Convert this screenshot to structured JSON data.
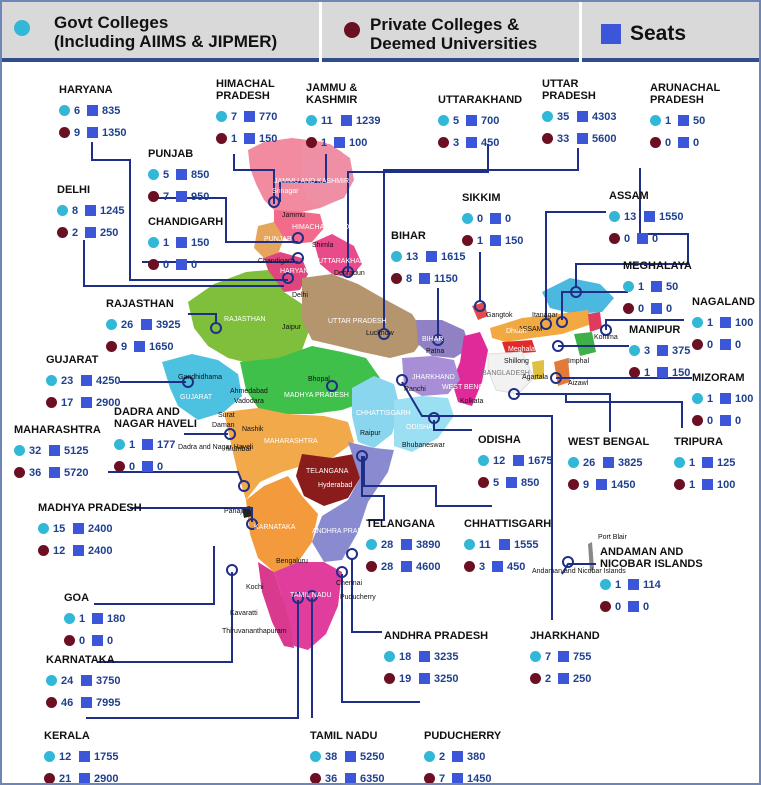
{
  "legend": {
    "govt": "Govt Colleges\n(Including AIIMS & JIPMER)",
    "govt_line1": "Govt Colleges",
    "govt_line2": "(Including AIIMS & JIPMER)",
    "private_line1": "Private Colleges &",
    "private_line2": "Deemed Universities",
    "seats": "Seats"
  },
  "colors": {
    "govt": "#33b7d6",
    "private": "#6b0f22",
    "seats": "#3b56d9",
    "header_bg": "#d9d9d9",
    "header_bar": "#2f4d8c",
    "connector": "#1f2f88"
  },
  "states": [
    {
      "id": "haryana",
      "name_lines": [
        "HARYANA"
      ],
      "govt": "6",
      "govt_seats": "835",
      "private": "9",
      "private_seats": "1350"
    },
    {
      "id": "himachal",
      "name_lines": [
        "HIMACHAL",
        "PRADESH"
      ],
      "govt": "7",
      "govt_seats": "770",
      "private": "1",
      "private_seats": "150"
    },
    {
      "id": "jk",
      "name_lines": [
        "JAMMU &",
        "KASHMIR"
      ],
      "govt": "11",
      "govt_seats": "1239",
      "private": "1",
      "private_seats": "100"
    },
    {
      "id": "uttarakhand",
      "name_lines": [
        "UTTARAKHAND"
      ],
      "govt": "5",
      "govt_seats": "700",
      "private": "3",
      "private_seats": "450"
    },
    {
      "id": "up",
      "name_lines": [
        "UTTAR",
        "PRADESH"
      ],
      "govt": "35",
      "govt_seats": "4303",
      "private": "33",
      "private_seats": "5600"
    },
    {
      "id": "arunachal",
      "name_lines": [
        "ARUNACHAL",
        "PRADESH"
      ],
      "govt": "1",
      "govt_seats": "50",
      "private": "0",
      "private_seats": "0"
    },
    {
      "id": "punjab",
      "name_lines": [
        "PUNJAB"
      ],
      "govt": "5",
      "govt_seats": "850",
      "private": "7",
      "private_seats": "950"
    },
    {
      "id": "delhi",
      "name_lines": [
        "DELHI"
      ],
      "govt": "8",
      "govt_seats": "1245",
      "private": "2",
      "private_seats": "250"
    },
    {
      "id": "chandigarh",
      "name_lines": [
        "CHANDIGARH"
      ],
      "govt": "1",
      "govt_seats": "150",
      "private": "0",
      "private_seats": "0"
    },
    {
      "id": "sikkim",
      "name_lines": [
        "SIKKIM"
      ],
      "govt": "0",
      "govt_seats": "0",
      "private": "1",
      "private_seats": "150"
    },
    {
      "id": "assam",
      "name_lines": [
        "ASSAM"
      ],
      "govt": "13",
      "govt_seats": "1550",
      "private": "0",
      "private_seats": "0"
    },
    {
      "id": "bihar",
      "name_lines": [
        "BIHAR"
      ],
      "govt": "13",
      "govt_seats": "1615",
      "private": "8",
      "private_seats": "1150"
    },
    {
      "id": "meghalaya",
      "name_lines": [
        "MEGHALAYA"
      ],
      "govt": "1",
      "govt_seats": "50",
      "private": "0",
      "private_seats": "0"
    },
    {
      "id": "rajasthan",
      "name_lines": [
        "RAJASTHAN"
      ],
      "govt": "26",
      "govt_seats": "3925",
      "private": "9",
      "private_seats": "1650"
    },
    {
      "id": "nagaland",
      "name_lines": [
        "NAGALAND"
      ],
      "govt": "1",
      "govt_seats": "100",
      "private": "0",
      "private_seats": "0"
    },
    {
      "id": "manipur",
      "name_lines": [
        "MANIPUR"
      ],
      "govt": "3",
      "govt_seats": "375",
      "private": "1",
      "private_seats": "150"
    },
    {
      "id": "gujarat",
      "name_lines": [
        "GUJARAT"
      ],
      "govt": "23",
      "govt_seats": "4250",
      "private": "17",
      "private_seats": "2900"
    },
    {
      "id": "mizoram",
      "name_lines": [
        "MIZORAM"
      ],
      "govt": "1",
      "govt_seats": "100",
      "private": "0",
      "private_seats": "0"
    },
    {
      "id": "dnh",
      "name_lines": [
        "DADRA AND",
        "NAGAR HAVELI"
      ],
      "govt": "1",
      "govt_seats": "177",
      "private": "0",
      "private_seats": "0"
    },
    {
      "id": "maharashtra",
      "name_lines": [
        "MAHARASHTRA"
      ],
      "govt": "32",
      "govt_seats": "5125",
      "private": "36",
      "private_seats": "5720"
    },
    {
      "id": "westbengal",
      "name_lines": [
        "WEST BENGAL"
      ],
      "govt": "26",
      "govt_seats": "3825",
      "private": "9",
      "private_seats": "1450"
    },
    {
      "id": "tripura",
      "name_lines": [
        "TRIPURA"
      ],
      "govt": "1",
      "govt_seats": "125",
      "private": "1",
      "private_seats": "100"
    },
    {
      "id": "odisha",
      "name_lines": [
        "ODISHA"
      ],
      "govt": "12",
      "govt_seats": "1675",
      "private": "5",
      "private_seats": "850"
    },
    {
      "id": "mp",
      "name_lines": [
        "MADHYA PRADESH"
      ],
      "govt": "15",
      "govt_seats": "2400",
      "private": "12",
      "private_seats": "2400"
    },
    {
      "id": "telangana",
      "name_lines": [
        "TELANGANA"
      ],
      "govt": "28",
      "govt_seats": "3890",
      "private": "28",
      "private_seats": "4600"
    },
    {
      "id": "chhattisgarh",
      "name_lines": [
        "CHHATTISGARH"
      ],
      "govt": "11",
      "govt_seats": "1555",
      "private": "3",
      "private_seats": "450"
    },
    {
      "id": "andaman",
      "name_lines": [
        "ANDAMAN AND",
        "NICOBAR ISLANDS"
      ],
      "govt": "1",
      "govt_seats": "114",
      "private": "0",
      "private_seats": "0"
    },
    {
      "id": "goa",
      "name_lines": [
        "GOA"
      ],
      "govt": "1",
      "govt_seats": "180",
      "private": "0",
      "private_seats": "0"
    },
    {
      "id": "andhra",
      "name_lines": [
        "ANDHRA PRADESH"
      ],
      "govt": "18",
      "govt_seats": "3235",
      "private": "19",
      "private_seats": "3250"
    },
    {
      "id": "jharkhand",
      "name_lines": [
        "JHARKHAND"
      ],
      "govt": "7",
      "govt_seats": "755",
      "private": "2",
      "private_seats": "250"
    },
    {
      "id": "karnataka",
      "name_lines": [
        "KARNATAKA"
      ],
      "govt": "24",
      "govt_seats": "3750",
      "private": "46",
      "private_seats": "7995"
    },
    {
      "id": "kerala",
      "name_lines": [
        "KERALA"
      ],
      "govt": "12",
      "govt_seats": "1755",
      "private": "21",
      "private_seats": "2900"
    },
    {
      "id": "tamilnadu",
      "name_lines": [
        "TAMIL NADU"
      ],
      "govt": "38",
      "govt_seats": "5250",
      "private": "36",
      "private_seats": "6350"
    },
    {
      "id": "puducherry",
      "name_lines": [
        "PUDUCHERRY"
      ],
      "govt": "2",
      "govt_seats": "380",
      "private": "7",
      "private_seats": "1450"
    }
  ],
  "map_state_labels": [
    "JAMMU AND KASHMIR",
    "HIMACHAL PRADESH",
    "PUNJAB",
    "HARYANA",
    "UTTARAKHAND",
    "RAJASTHAN",
    "UTTAR PRADESH",
    "BIHAR",
    "SIKKIM",
    "ARUNACHAL PRADESH",
    "ASSAM",
    "NAGALAND",
    "MANIPUR",
    "MIZORAM",
    "Meghalaya",
    "GUJARAT",
    "MADHYA PRADESH",
    "JHARKHAND",
    "WEST BENGAL",
    "CHHATTISGARH",
    "ODISHA",
    "MAHARASHTRA",
    "TELANGANA",
    "ANDHRA PRADESH",
    "KARNATAKA",
    "TAMIL NADU",
    "KERALA"
  ],
  "map_city_labels": [
    "Srinagar",
    "Jammu",
    "Shimla",
    "Chandigarh",
    "Dehradun",
    "Delhi",
    "Jaipur",
    "Lucknow",
    "Patna",
    "Gangtok",
    "Dhubri",
    "Itanagar",
    "Kohima",
    "Shillong",
    "Imphal",
    "Agartala",
    "Aizawl",
    "BANGLADESH",
    "Ranchi",
    "Kolkata",
    "Bhopal",
    "Gandhidhama",
    "Ahmedabad",
    "Vadodara",
    "Surat",
    "Daman",
    "Dadra and Nagar Haveli",
    "Nashik",
    "Mumbai",
    "Raipur",
    "Bhubaneswar",
    "Hyderabad",
    "Panaji",
    "Bengaluru",
    "Chennai",
    "Puducherry",
    "Kochi",
    "Kavaratti",
    "Thiruvananthapuram",
    "Port Blair",
    "Andaman and Nicobar Islands"
  ]
}
